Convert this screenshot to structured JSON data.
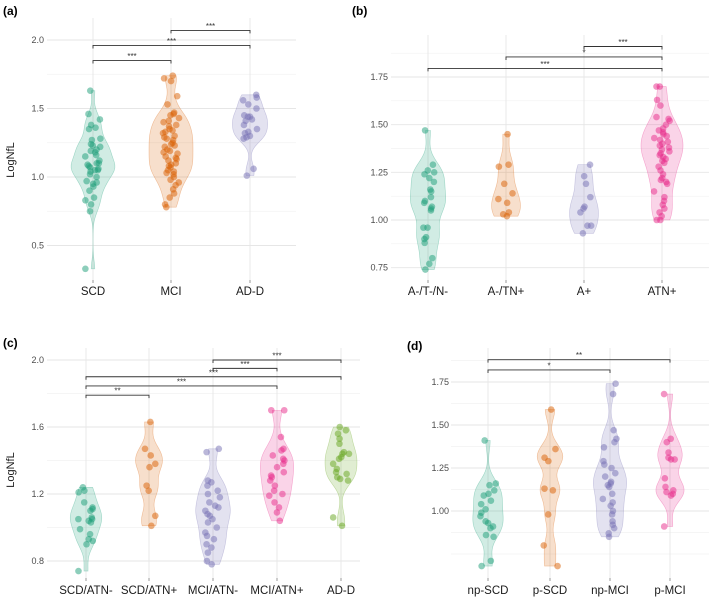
{
  "chart_data": [
    {
      "type": "violin",
      "panel_label": "(a)",
      "ylabel": "LogNfL",
      "yticks": [
        0.5,
        1.0,
        1.5,
        2.0
      ],
      "ytick_labels": [
        "0.5",
        "1.0",
        "1.5",
        "2.0"
      ],
      "minor_grid": [
        0.75,
        1.25,
        1.75
      ],
      "ylim": [
        0.25,
        2.2
      ],
      "categories": [
        "SCD",
        "MCI",
        "AD-D"
      ],
      "colors": [
        "#1b9e77",
        "#d95f02",
        "#7570b3"
      ],
      "groups": [
        [
          1.63,
          1.46,
          1.42,
          1.38,
          1.36,
          1.35,
          1.28,
          1.27,
          1.24,
          1.23,
          1.22,
          1.2,
          1.19,
          1.18,
          1.16,
          1.15,
          1.12,
          1.1,
          1.1,
          1.09,
          1.08,
          1.07,
          1.06,
          1.05,
          1.05,
          1.04,
          1.02,
          1.0,
          0.97,
          0.96,
          0.95,
          0.93,
          0.9,
          0.85,
          0.83,
          0.8,
          0.75,
          0.33
        ],
        [
          1.74,
          1.72,
          1.7,
          1.59,
          1.53,
          1.47,
          1.46,
          1.45,
          1.43,
          1.41,
          1.4,
          1.38,
          1.37,
          1.35,
          1.34,
          1.33,
          1.32,
          1.3,
          1.29,
          1.28,
          1.27,
          1.25,
          1.24,
          1.23,
          1.22,
          1.2,
          1.19,
          1.18,
          1.17,
          1.15,
          1.14,
          1.13,
          1.12,
          1.1,
          1.09,
          1.08,
          1.07,
          1.05,
          1.04,
          1.03,
          1.02,
          1.0,
          0.98,
          0.96,
          0.94,
          0.91,
          0.88,
          0.85,
          0.8,
          0.78
        ],
        [
          1.6,
          1.58,
          1.56,
          1.53,
          1.5,
          1.45,
          1.44,
          1.44,
          1.42,
          1.41,
          1.38,
          1.35,
          1.33,
          1.32,
          1.3,
          1.29,
          1.28,
          1.06,
          1.01
        ]
      ],
      "comparisons": [
        {
          "from": 0,
          "to": 1,
          "y": 1.85,
          "label": "***"
        },
        {
          "from": 0,
          "to": 2,
          "y": 1.96,
          "label": "***"
        },
        {
          "from": 1,
          "to": 2,
          "y": 2.07,
          "label": "***"
        }
      ]
    },
    {
      "type": "violin",
      "panel_label": "(b)",
      "ylabel": "",
      "yticks": [
        0.75,
        1.0,
        1.25,
        1.5,
        1.75
      ],
      "ytick_labels": [
        "0.75",
        "1.00",
        "1.25",
        "1.50",
        "1.75"
      ],
      "minor_grid": [
        0.875,
        1.125,
        1.375,
        1.625,
        1.875
      ],
      "ylim": [
        0.72,
        1.97
      ],
      "categories": [
        "A-/T-/N-",
        "A-/TN+",
        "A+",
        "ATN+"
      ],
      "colors": [
        "#1b9e77",
        "#d95f02",
        "#7570b3",
        "#e7298a"
      ],
      "groups": [
        [
          1.47,
          1.29,
          1.26,
          1.25,
          1.24,
          1.22,
          1.2,
          1.16,
          1.15,
          1.12,
          1.1,
          1.09,
          1.07,
          1.06,
          1.05,
          0.96,
          0.96,
          0.91,
          0.9,
          0.88,
          0.8,
          0.77,
          0.74
        ],
        [
          1.45,
          1.29,
          1.28,
          1.19,
          1.14,
          1.11,
          1.09,
          1.04,
          1.03,
          1.02
        ],
        [
          1.29,
          1.23,
          1.19,
          1.12,
          1.07,
          1.06,
          1.04,
          0.97,
          0.97,
          0.93
        ],
        [
          1.7,
          1.7,
          1.63,
          1.6,
          1.54,
          1.53,
          1.52,
          1.5,
          1.48,
          1.47,
          1.46,
          1.45,
          1.44,
          1.43,
          1.42,
          1.41,
          1.4,
          1.39,
          1.38,
          1.37,
          1.36,
          1.35,
          1.34,
          1.33,
          1.32,
          1.31,
          1.3,
          1.28,
          1.26,
          1.24,
          1.22,
          1.21,
          1.2,
          1.19,
          1.15,
          1.12,
          1.1,
          1.08,
          1.06,
          1.04,
          1.02,
          1.0,
          1.0
        ]
      ],
      "comparisons": [
        {
          "from": 0,
          "to": 3,
          "y": 1.795,
          "label": "***"
        },
        {
          "from": 1,
          "to": 3,
          "y": 1.855,
          "label": "*"
        },
        {
          "from": 2,
          "to": 3,
          "y": 1.91,
          "label": "***"
        }
      ]
    },
    {
      "type": "violin",
      "panel_label": "(c)",
      "ylabel": "LogNfL",
      "yticks": [
        0.8,
        1.2,
        1.6,
        2.0
      ],
      "ytick_labels": [
        "0.8",
        "1.2",
        "1.6",
        "2.0"
      ],
      "minor_grid": [
        1.0,
        1.4,
        1.8
      ],
      "ylim": [
        0.72,
        2.08
      ],
      "categories": [
        "SCD/ATN-",
        "SCD/ATN+",
        "MCI/ATN-",
        "MCI/ATN+",
        "AD-D"
      ],
      "colors": [
        "#1b9e77",
        "#d95f02",
        "#7570b3",
        "#e7298a",
        "#66a61e"
      ],
      "groups": [
        [
          1.24,
          1.22,
          1.21,
          1.15,
          1.12,
          1.11,
          1.1,
          1.06,
          1.05,
          1.05,
          1.04,
          1.03,
          0.99,
          0.96,
          0.93,
          0.92,
          0.9,
          0.74
        ],
        [
          1.63,
          1.47,
          1.43,
          1.38,
          1.36,
          1.25,
          1.22,
          1.07,
          1.01
        ],
        [
          1.47,
          1.45,
          1.28,
          1.27,
          1.25,
          1.22,
          1.2,
          1.18,
          1.15,
          1.13,
          1.12,
          1.1,
          1.08,
          1.07,
          1.05,
          1.03,
          1.0,
          0.97,
          0.95,
          0.93,
          0.9,
          0.88,
          0.85,
          0.8,
          0.78
        ],
        [
          1.7,
          1.7,
          1.54,
          1.47,
          1.46,
          1.43,
          1.41,
          1.4,
          1.38,
          1.36,
          1.33,
          1.31,
          1.3,
          1.28,
          1.25,
          1.22,
          1.2,
          1.19,
          1.15,
          1.12,
          1.09,
          1.04
        ],
        [
          1.6,
          1.58,
          1.56,
          1.53,
          1.5,
          1.45,
          1.44,
          1.44,
          1.42,
          1.41,
          1.38,
          1.35,
          1.33,
          1.32,
          1.3,
          1.29,
          1.28,
          1.06,
          1.01
        ]
      ],
      "comparisons": [
        {
          "from": 0,
          "to": 1,
          "y": 1.79,
          "label": "**"
        },
        {
          "from": 0,
          "to": 3,
          "y": 1.845,
          "label": "***"
        },
        {
          "from": 0,
          "to": 4,
          "y": 1.9,
          "label": "***"
        },
        {
          "from": 2,
          "to": 3,
          "y": 1.95,
          "label": "***"
        },
        {
          "from": 2,
          "to": 4,
          "y": 2.0,
          "label": "***"
        }
      ]
    },
    {
      "type": "violin",
      "panel_label": "(d)",
      "ylabel": "",
      "yticks": [
        1.0,
        1.25,
        1.5,
        1.75
      ],
      "ytick_labels": [
        "1.00",
        "1.25",
        "1.50",
        "1.75"
      ],
      "minor_grid": [
        0.75,
        0.875,
        1.125,
        1.375,
        1.625,
        1.875
      ],
      "ylim": [
        0.64,
        1.95
      ],
      "categories": [
        "np-SCD",
        "p-SCD",
        "np-MCI",
        "p-MCI"
      ],
      "colors": [
        "#1b9e77",
        "#d95f02",
        "#7570b3",
        "#e7298a"
      ],
      "groups": [
        [
          1.41,
          1.16,
          1.15,
          1.12,
          1.1,
          1.09,
          1.06,
          1.04,
          1.01,
          0.99,
          0.97,
          0.94,
          0.93,
          0.91,
          0.9,
          0.86,
          0.85,
          0.71,
          0.68
        ],
        [
          1.59,
          1.36,
          1.31,
          1.29,
          1.13,
          1.12,
          0.98,
          0.8,
          0.68
        ],
        [
          1.74,
          1.68,
          1.47,
          1.42,
          1.4,
          1.37,
          1.29,
          1.27,
          1.25,
          1.22,
          1.2,
          1.17,
          1.16,
          1.15,
          1.14,
          1.1,
          1.07,
          1.05,
          1.03,
          1.0,
          0.98,
          0.94,
          0.92,
          0.9,
          0.87,
          0.85
        ],
        [
          1.68,
          1.42,
          1.4,
          1.34,
          1.31,
          1.3,
          1.3,
          1.19,
          1.14,
          1.12,
          1.11,
          1.1,
          1.09,
          0.91
        ]
      ],
      "comparisons": [
        {
          "from": 0,
          "to": 2,
          "y": 1.82,
          "label": "*"
        },
        {
          "from": 0,
          "to": 3,
          "y": 1.88,
          "label": "**"
        }
      ]
    }
  ]
}
